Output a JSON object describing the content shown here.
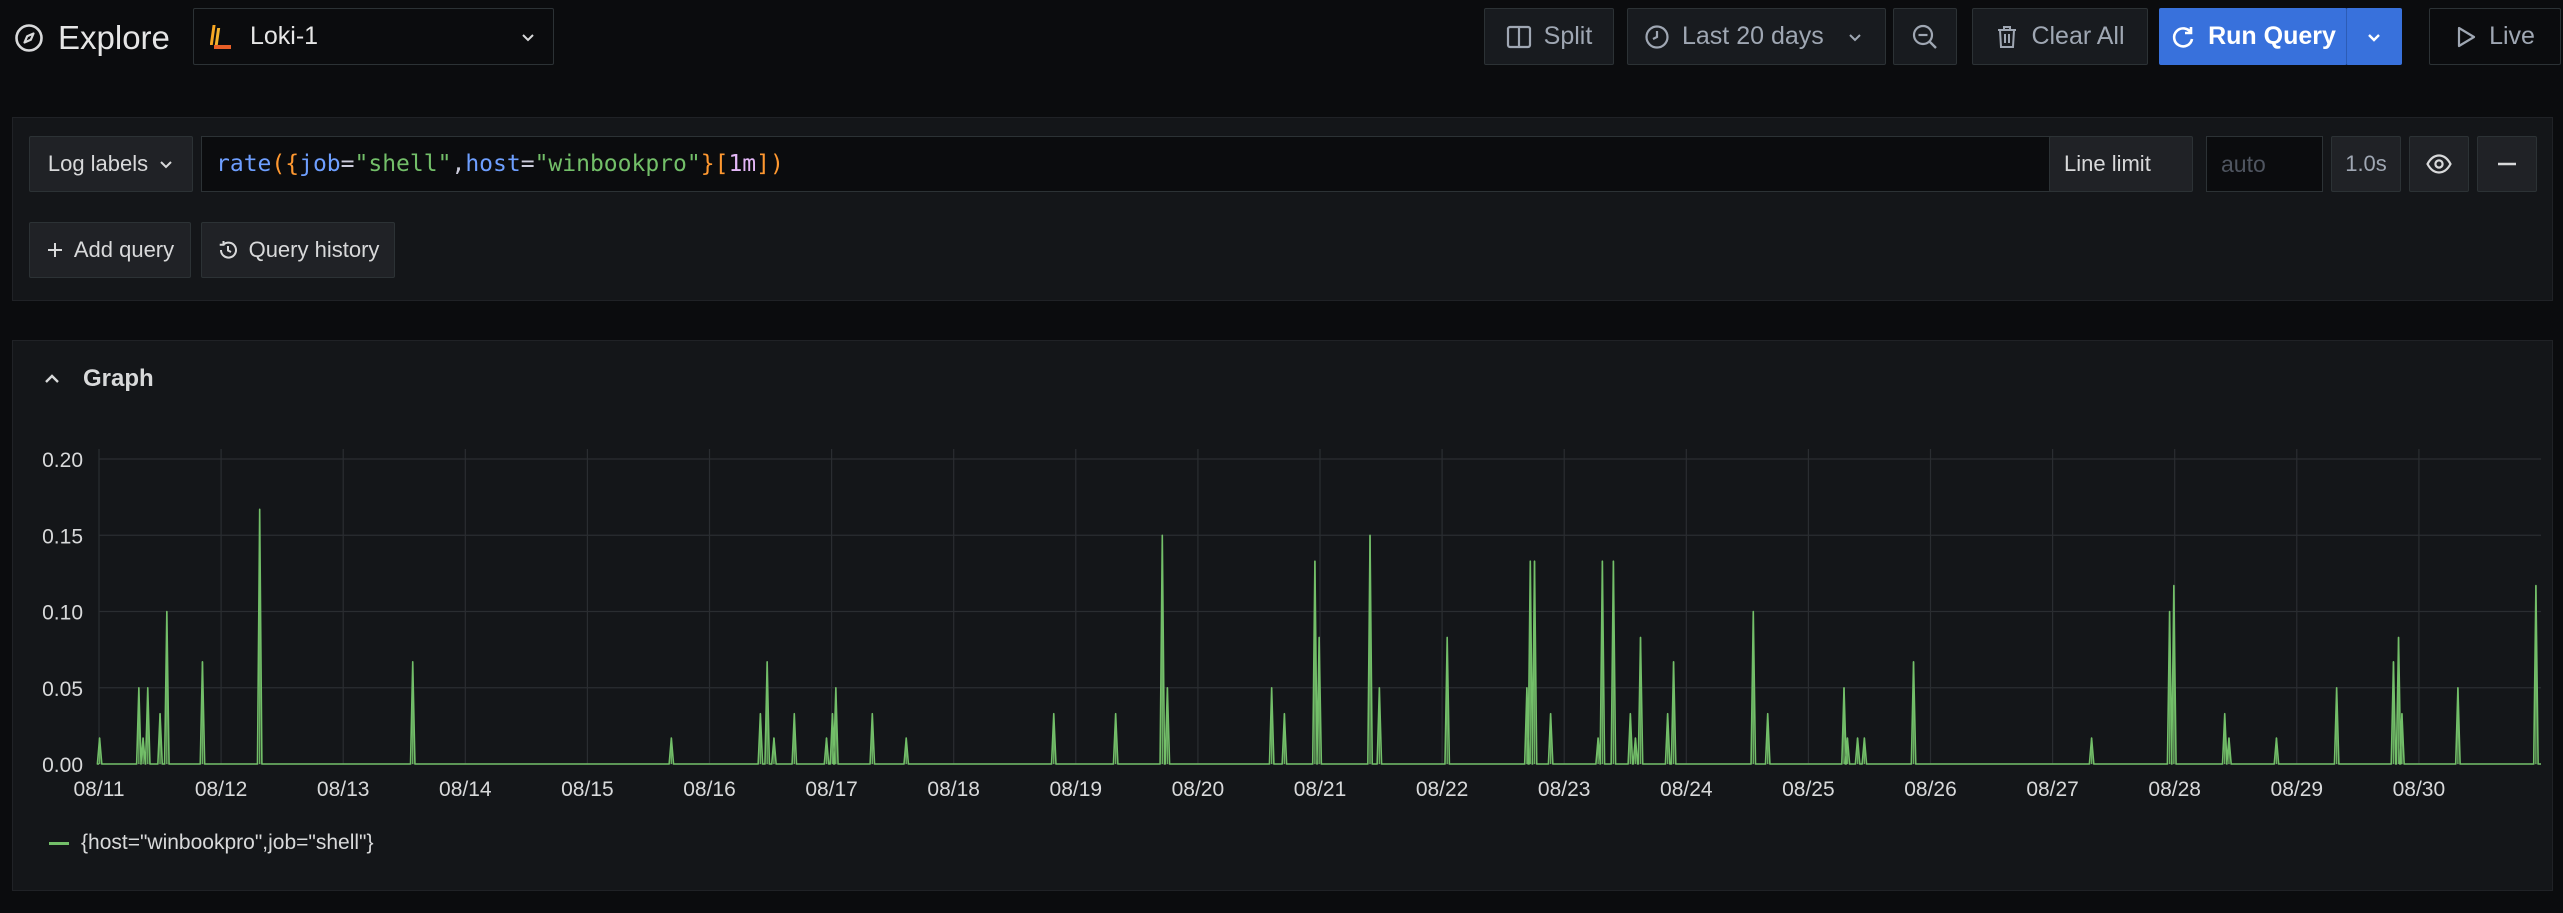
{
  "header": {
    "title": "Explore",
    "datasource": "Loki-1",
    "split_label": "Split",
    "time_range": "Last 20 days",
    "clear_label": "Clear All",
    "run_label": "Run Query",
    "live_label": "Live"
  },
  "query": {
    "labels_button": "Log labels",
    "tokens": {
      "fn": "rate",
      "p_open": "(",
      "b_open": "{",
      "k1": "job",
      "eq1": "=",
      "v1": "\"shell\"",
      "comma": ",",
      "k2": "host",
      "eq2": "=",
      "v2": "\"winbookpro\"",
      "b_close": "}",
      "r_open": "[",
      "dur": "1m",
      "r_close": "]",
      "p_close": ")"
    },
    "line_limit_label": "Line limit",
    "line_limit_placeholder": "auto",
    "duration": "1.0s",
    "add_query": "Add query",
    "history": "Query history"
  },
  "graph": {
    "title": "Graph",
    "legend": "{host=\"winbookpro\",job=\"shell\"}"
  },
  "colors": {
    "series": "#73bf69",
    "accent": "#3871dc"
  },
  "chart_data": {
    "type": "line",
    "x_unit": "day",
    "x_ticks": [
      "08/11",
      "08/12",
      "08/13",
      "08/14",
      "08/15",
      "08/16",
      "08/17",
      "08/18",
      "08/19",
      "08/20",
      "08/21",
      "08/22",
      "08/23",
      "08/24",
      "08/25",
      "08/26",
      "08/27",
      "08/28",
      "08/29",
      "08/30"
    ],
    "y_ticks": [
      "0.00",
      "0.05",
      "0.10",
      "0.15",
      "0.20"
    ],
    "xlim": [
      "08/11 00:00",
      "08/30 23:59"
    ],
    "ylim": [
      0,
      0.2
    ],
    "grid": true,
    "legend_position": "bottom-left",
    "series": [
      {
        "spikes": [
          [
            "08/11 00:07",
            0.017
          ],
          [
            "08/11 07:50",
            0.05
          ],
          [
            "08/11 08:40",
            0.017
          ],
          [
            "08/11 09:35",
            0.05
          ],
          [
            "08/11 12:00",
            0.033
          ],
          [
            "08/11 13:20",
            0.1
          ],
          [
            "08/11 20:20",
            0.067
          ],
          [
            "08/12 07:35",
            0.167
          ],
          [
            "08/13 13:40",
            0.067
          ],
          [
            "08/15 16:30",
            0.017
          ],
          [
            "08/16 10:00",
            0.033
          ],
          [
            "08/16 11:20",
            0.067
          ],
          [
            "08/16 12:40",
            0.017
          ],
          [
            "08/16 16:40",
            0.033
          ],
          [
            "08/16 23:00",
            0.017
          ],
          [
            "08/17 00:10",
            0.033
          ],
          [
            "08/17 00:50",
            0.05
          ],
          [
            "08/17 08:00",
            0.033
          ],
          [
            "08/17 14:40",
            0.017
          ],
          [
            "08/18 19:40",
            0.033
          ],
          [
            "08/19 07:50",
            0.033
          ],
          [
            "08/19 17:00",
            0.15
          ],
          [
            "08/19 18:00",
            0.05
          ],
          [
            "08/20 14:30",
            0.05
          ],
          [
            "08/20 17:00",
            0.033
          ],
          [
            "08/20 23:00",
            0.133
          ],
          [
            "08/20 23:50",
            0.083
          ],
          [
            "08/21 09:50",
            0.15
          ],
          [
            "08/21 11:40",
            0.05
          ],
          [
            "08/22 01:00",
            0.083
          ],
          [
            "08/22 16:40",
            0.05
          ],
          [
            "08/22 17:20",
            0.133
          ],
          [
            "08/22 18:10",
            0.133
          ],
          [
            "08/22 21:20",
            0.033
          ],
          [
            "08/23 06:40",
            0.017
          ],
          [
            "08/23 07:30",
            0.133
          ],
          [
            "08/23 09:40",
            0.133
          ],
          [
            "08/23 13:00",
            0.033
          ],
          [
            "08/23 14:00",
            0.017
          ],
          [
            "08/23 15:00",
            0.083
          ],
          [
            "08/23 20:20",
            0.033
          ],
          [
            "08/23 21:30",
            0.067
          ],
          [
            "08/24 13:10",
            0.1
          ],
          [
            "08/24 16:00",
            0.033
          ],
          [
            "08/25 07:00",
            0.05
          ],
          [
            "08/25 07:40",
            0.017
          ],
          [
            "08/25 09:40",
            0.017
          ],
          [
            "08/25 11:00",
            0.017
          ],
          [
            "08/25 20:40",
            0.067
          ],
          [
            "08/27 07:40",
            0.017
          ],
          [
            "08/27 23:00",
            0.1
          ],
          [
            "08/27 23:50",
            0.117
          ],
          [
            "08/28 09:50",
            0.033
          ],
          [
            "08/28 10:40",
            0.017
          ],
          [
            "08/28 20:00",
            0.017
          ],
          [
            "08/29 07:50",
            0.05
          ],
          [
            "08/29 19:00",
            0.067
          ],
          [
            "08/29 20:00",
            0.083
          ],
          [
            "08/29 20:40",
            0.033
          ],
          [
            "08/30 07:40",
            0.05
          ],
          [
            "08/30 23:00",
            0.117
          ]
        ]
      }
    ]
  }
}
